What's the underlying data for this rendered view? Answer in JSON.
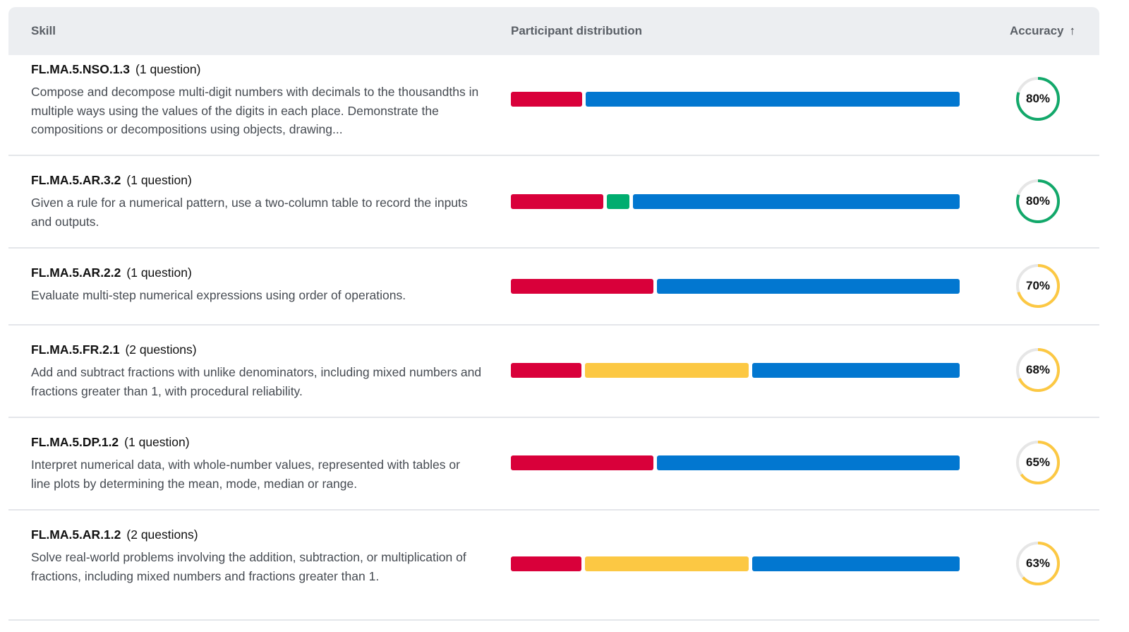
{
  "header": {
    "skill": "Skill",
    "distribution": "Participant distribution",
    "accuracy": "Accuracy",
    "sort_icon": "arrow-up-icon",
    "sort_glyph": "↑"
  },
  "colors": {
    "incorrect": "#d9003a",
    "partial": "#fcc843",
    "extra": "#00ad6f",
    "correct": "#0277d0",
    "ring_track": "#e6e6e6",
    "ring_high": "#12a86a",
    "ring_mid": "#fcc843"
  },
  "rows": [
    {
      "code": "FL.MA.5.NSO.1.3",
      "questions": "(1 question)",
      "description": "Compose and decompose multi-digit numbers with decimals to the thousandths in multiple ways using the values of the digits in each place. Demonstrate the compositions or decompositions using objects, drawing...",
      "accuracy": 80,
      "accuracy_label": "80%",
      "ring_color": "#12a86a",
      "distribution": [
        {
          "category": "incorrect",
          "color": "#d9003a",
          "share": 16
        },
        {
          "category": "correct",
          "color": "#0277d0",
          "share": 84
        }
      ]
    },
    {
      "code": "FL.MA.5.AR.3.2",
      "questions": "(1 question)",
      "description": "Given a rule for a numerical pattern, use a two-column table to record the inputs and outputs.",
      "accuracy": 80,
      "accuracy_label": "80%",
      "ring_color": "#12a86a",
      "distribution": [
        {
          "category": "incorrect",
          "color": "#d9003a",
          "share": 21
        },
        {
          "category": "extra",
          "color": "#00ad6f",
          "share": 5
        },
        {
          "category": "correct",
          "color": "#0277d0",
          "share": 74
        }
      ]
    },
    {
      "code": "FL.MA.5.AR.2.2",
      "questions": "(1 question)",
      "description": "Evaluate multi-step numerical expressions using order of operations.",
      "accuracy": 70,
      "accuracy_label": "70%",
      "ring_color": "#fcc843",
      "distribution": [
        {
          "category": "incorrect",
          "color": "#d9003a",
          "share": 32
        },
        {
          "category": "correct",
          "color": "#0277d0",
          "share": 68
        }
      ]
    },
    {
      "code": "FL.MA.5.FR.2.1",
      "questions": "(2 questions)",
      "description": "Add and subtract fractions with unlike denominators, including mixed numbers and fractions greater than 1, with procedural reliability.",
      "accuracy": 68,
      "accuracy_label": "68%",
      "ring_color": "#fcc843",
      "distribution": [
        {
          "category": "incorrect",
          "color": "#d9003a",
          "share": 16
        },
        {
          "category": "partial",
          "color": "#fcc843",
          "share": 37
        },
        {
          "category": "correct",
          "color": "#0277d0",
          "share": 47
        }
      ]
    },
    {
      "code": "FL.MA.5.DP.1.2",
      "questions": "(1 question)",
      "description": "Interpret numerical data, with whole-number values, represented with tables or line plots by determining the mean, mode, median or range.",
      "accuracy": 65,
      "accuracy_label": "65%",
      "ring_color": "#fcc843",
      "distribution": [
        {
          "category": "incorrect",
          "color": "#d9003a",
          "share": 32
        },
        {
          "category": "correct",
          "color": "#0277d0",
          "share": 68
        }
      ]
    },
    {
      "code": "FL.MA.5.AR.1.2",
      "questions": "(2 questions)",
      "description": "Solve real-world problems involving the addition, subtraction, or multiplication of fractions, including mixed numbers and fractions greater than 1.",
      "accuracy": 63,
      "accuracy_label": "63%",
      "ring_color": "#fcc843",
      "distribution": [
        {
          "category": "incorrect",
          "color": "#d9003a",
          "share": 16
        },
        {
          "category": "partial",
          "color": "#fcc843",
          "share": 37
        },
        {
          "category": "correct",
          "color": "#0277d0",
          "share": 47
        }
      ]
    }
  ]
}
